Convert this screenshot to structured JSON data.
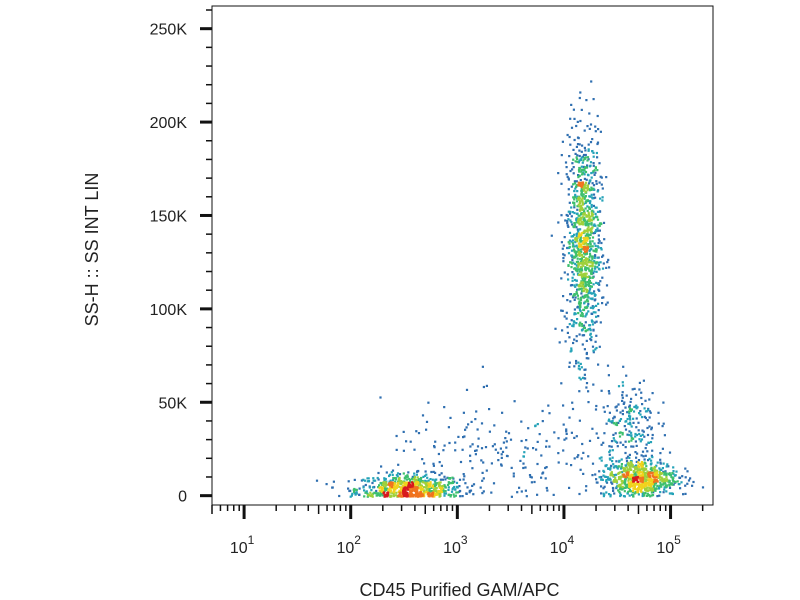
{
  "chart_data": {
    "type": "scatter",
    "title": "",
    "xlabel": "CD45 Purified GAM/APC",
    "ylabel": "SS-H :: SS INT LIN",
    "x_scale": "log",
    "xlim": [
      5,
      250000
    ],
    "ylim": [
      -5000,
      262144
    ],
    "x_ticks": [
      {
        "value": 10,
        "base": "10",
        "exp": "1"
      },
      {
        "value": 100,
        "base": "10",
        "exp": "2"
      },
      {
        "value": 1000,
        "base": "10",
        "exp": "3"
      },
      {
        "value": 10000,
        "base": "10",
        "exp": "4"
      },
      {
        "value": 100000,
        "base": "10",
        "exp": "5"
      }
    ],
    "y_ticks": [
      {
        "value": 0,
        "label": "0"
      },
      {
        "value": 50000,
        "label": "50K"
      },
      {
        "value": 100000,
        "label": "100K"
      },
      {
        "value": 150000,
        "label": "150K"
      },
      {
        "value": 200000,
        "label": "200K"
      },
      {
        "value": 250000,
        "label": "250K"
      }
    ],
    "grid": false,
    "legend": "none",
    "colormap": [
      "#2b3a8f",
      "#2f6fb0",
      "#25a3b8",
      "#3cbf6e",
      "#9fd03a",
      "#f1d21c",
      "#f0731e",
      "#d7191c"
    ],
    "populations": [
      {
        "x_center": 350,
        "x_spread_decades": 0.25,
        "y_center": 4000,
        "y_spread": 4000,
        "weight": 700
      },
      {
        "x_center": 15000,
        "x_spread_decades": 0.08,
        "y_center": 135000,
        "y_spread": 30000,
        "weight": 1100
      },
      {
        "x_center": 50000,
        "x_spread_decades": 0.18,
        "y_center": 10000,
        "y_spread": 5000,
        "weight": 700
      },
      {
        "x_center": 40000,
        "x_spread_decades": 0.13,
        "y_center": 40000,
        "y_spread": 12000,
        "weight": 200
      },
      {
        "x_center": 3000,
        "x_spread_decades": 0.6,
        "y_center": 20000,
        "y_spread": 15000,
        "weight": 220
      }
    ]
  }
}
